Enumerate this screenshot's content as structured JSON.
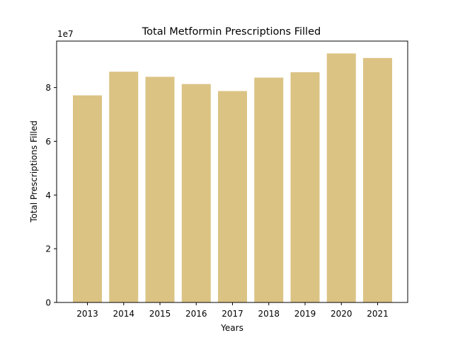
{
  "chart_data": {
    "type": "bar",
    "title": "Total Metformin Prescriptions Filled",
    "xlabel": "Years",
    "ylabel": "Total Prescriptions Filled",
    "offset_text": "1e7",
    "categories": [
      "2013",
      "2014",
      "2015",
      "2016",
      "2017",
      "2018",
      "2019",
      "2020",
      "2021"
    ],
    "values": [
      77100000,
      85900000,
      84000000,
      81300000,
      78700000,
      83700000,
      85700000,
      92700000,
      91000000
    ],
    "ylim": [
      0,
      97300000
    ],
    "yticks": [
      {
        "value": 0,
        "label": "0"
      },
      {
        "value": 20000000,
        "label": "2"
      },
      {
        "value": 40000000,
        "label": "4"
      },
      {
        "value": 60000000,
        "label": "6"
      },
      {
        "value": 80000000,
        "label": "8"
      }
    ],
    "bar_color": "#dbc384",
    "grid": false,
    "legend": "none"
  }
}
